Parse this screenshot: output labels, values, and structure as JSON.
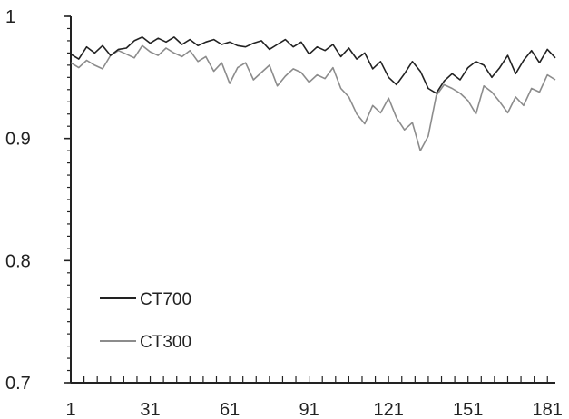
{
  "chart_data": {
    "type": "line",
    "title": "",
    "xlabel": "",
    "ylabel": "",
    "xlim": [
      1,
      184
    ],
    "ylim": [
      0.7,
      1.0
    ],
    "x_ticks": [
      1,
      31,
      61,
      91,
      121,
      151,
      181
    ],
    "x_tick_labels": [
      "1",
      "31",
      "61",
      "91",
      "121",
      "151",
      "181"
    ],
    "y_ticks": [
      0.7,
      0.8,
      0.9,
      1.0
    ],
    "y_tick_labels": [
      "0.7",
      "0.8",
      "0.9",
      "1"
    ],
    "grid": false,
    "legend_position": "bottom-left",
    "series": [
      {
        "name": "CT700",
        "color": "#222222",
        "x": [
          1,
          4,
          7,
          10,
          13,
          16,
          19,
          22,
          25,
          28,
          31,
          34,
          37,
          40,
          43,
          46,
          49,
          52,
          55,
          58,
          61,
          64,
          67,
          70,
          73,
          76,
          79,
          82,
          85,
          88,
          91,
          94,
          97,
          100,
          103,
          106,
          109,
          112,
          115,
          118,
          121,
          124,
          127,
          130,
          133,
          136,
          139,
          142,
          145,
          148,
          151,
          154,
          157,
          160,
          163,
          166,
          169,
          172,
          175,
          178,
          181,
          184
        ],
        "values": [
          0.969,
          0.965,
          0.975,
          0.97,
          0.976,
          0.968,
          0.973,
          0.974,
          0.98,
          0.983,
          0.978,
          0.982,
          0.979,
          0.983,
          0.977,
          0.981,
          0.976,
          0.979,
          0.981,
          0.977,
          0.979,
          0.976,
          0.975,
          0.978,
          0.98,
          0.973,
          0.977,
          0.981,
          0.975,
          0.979,
          0.969,
          0.975,
          0.972,
          0.977,
          0.967,
          0.974,
          0.965,
          0.97,
          0.957,
          0.963,
          0.95,
          0.944,
          0.953,
          0.963,
          0.955,
          0.941,
          0.937,
          0.947,
          0.953,
          0.948,
          0.958,
          0.963,
          0.96,
          0.95,
          0.958,
          0.968,
          0.953,
          0.964,
          0.972,
          0.962,
          0.973,
          0.966
        ]
      },
      {
        "name": "CT300",
        "color": "#8c8c8c",
        "x": [
          1,
          4,
          7,
          10,
          13,
          16,
          19,
          22,
          25,
          28,
          31,
          34,
          37,
          40,
          43,
          46,
          49,
          52,
          55,
          58,
          61,
          64,
          67,
          70,
          73,
          76,
          79,
          82,
          85,
          88,
          91,
          94,
          97,
          100,
          103,
          106,
          109,
          112,
          115,
          118,
          121,
          124,
          127,
          130,
          133,
          136,
          139,
          142,
          145,
          148,
          151,
          154,
          157,
          160,
          163,
          166,
          169,
          172,
          175,
          178,
          181,
          184
        ],
        "values": [
          0.962,
          0.958,
          0.964,
          0.96,
          0.957,
          0.968,
          0.972,
          0.969,
          0.966,
          0.976,
          0.971,
          0.968,
          0.974,
          0.97,
          0.967,
          0.972,
          0.963,
          0.967,
          0.955,
          0.962,
          0.945,
          0.958,
          0.962,
          0.948,
          0.954,
          0.96,
          0.943,
          0.951,
          0.957,
          0.954,
          0.946,
          0.952,
          0.949,
          0.958,
          0.941,
          0.934,
          0.92,
          0.912,
          0.927,
          0.921,
          0.933,
          0.917,
          0.907,
          0.913,
          0.89,
          0.902,
          0.935,
          0.944,
          0.941,
          0.937,
          0.931,
          0.92,
          0.943,
          0.938,
          0.93,
          0.921,
          0.934,
          0.927,
          0.941,
          0.938,
          0.952,
          0.948
        ]
      }
    ]
  }
}
